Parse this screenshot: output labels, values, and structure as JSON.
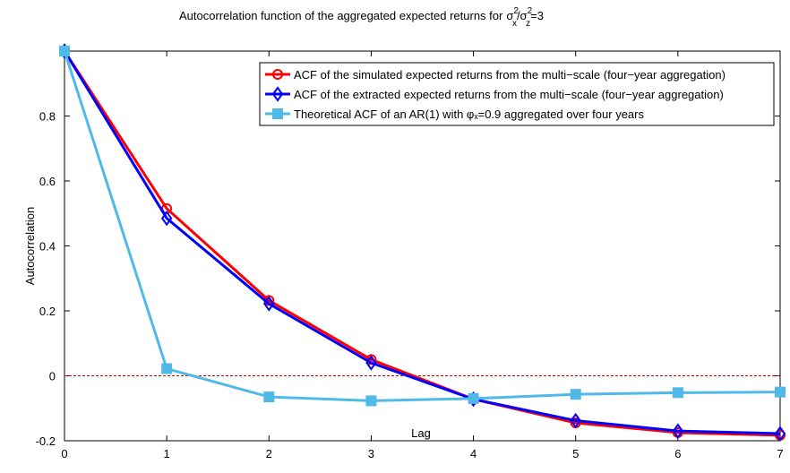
{
  "chart_data": {
    "type": "line",
    "title": "Autocorrelation function of the aggregated expected returns for",
    "title_formula": [
      "σ",
      "2",
      "x",
      "/σ",
      "2",
      "z",
      "=3"
    ],
    "xlabel": "Lag",
    "ylabel": "Autocorrelation",
    "x": [
      0,
      1,
      2,
      3,
      4,
      5,
      6,
      7
    ],
    "series": [
      {
        "name": "ACF of the simulated expected returns from the multi−scale (four−year aggregation)",
        "color": "#ff0000",
        "marker": "circle",
        "values": [
          1,
          0.515,
          0.232,
          0.05,
          -0.072,
          -0.145,
          -0.175,
          -0.183
        ]
      },
      {
        "name": "ACF of the extracted expected returns from the multi−scale (four−year aggregation)",
        "color": "#0000ff",
        "marker": "diamond",
        "values": [
          1,
          0.485,
          0.222,
          0.04,
          -0.072,
          -0.138,
          -0.17,
          -0.178
        ]
      },
      {
        "name": "Theoretical ACF of an AR(1) with φₓ=0.9 aggregated over four years",
        "color": "#4fb9e8",
        "marker": "square",
        "values": [
          1,
          0.022,
          -0.065,
          -0.077,
          -0.07,
          -0.057,
          -0.052,
          -0.05
        ]
      }
    ],
    "xlim": [
      0,
      7
    ],
    "xticks": [
      0,
      1,
      2,
      3,
      4,
      5,
      6,
      7
    ],
    "ylim": [
      -0.2,
      1
    ],
    "yticks": [
      -0.2,
      0,
      0.2,
      0.4,
      0.6,
      0.8
    ],
    "zero_line": {
      "value": 0,
      "color": "#cc0000"
    },
    "legend": "upper right"
  }
}
